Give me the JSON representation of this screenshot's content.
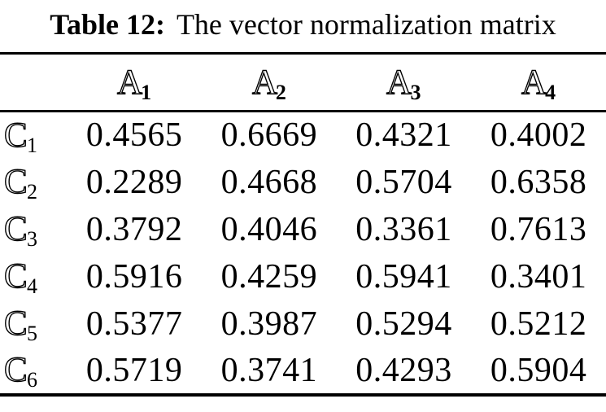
{
  "title": {
    "prefix": "Table 12:",
    "text": "The vector normalization matrix"
  },
  "table": {
    "col_headers": [
      {
        "letter": "A",
        "sub": "1"
      },
      {
        "letter": "A",
        "sub": "2"
      },
      {
        "letter": "A",
        "sub": "3"
      },
      {
        "letter": "A",
        "sub": "4"
      }
    ],
    "rows": [
      {
        "letter": "C",
        "sub": "1",
        "values": [
          "0.4565",
          "0.6669",
          "0.4321",
          "0.4002"
        ]
      },
      {
        "letter": "C",
        "sub": "2",
        "values": [
          "0.2289",
          "0.4668",
          "0.5704",
          "0.6358"
        ]
      },
      {
        "letter": "C",
        "sub": "3",
        "values": [
          "0.3792",
          "0.4046",
          "0.3361",
          "0.7613"
        ]
      },
      {
        "letter": "C",
        "sub": "4",
        "values": [
          "0.5916",
          "0.4259",
          "0.5941",
          "0.3401"
        ]
      },
      {
        "letter": "C",
        "sub": "5",
        "values": [
          "0.5377",
          "0.3987",
          "0.5294",
          "0.5212"
        ]
      },
      {
        "letter": "C",
        "sub": "6",
        "values": [
          "0.5719",
          "0.3741",
          "0.4293",
          "0.5904"
        ]
      }
    ]
  },
  "colors": {
    "background": "#ffffff",
    "text": "#000000",
    "rule": "#000000"
  }
}
